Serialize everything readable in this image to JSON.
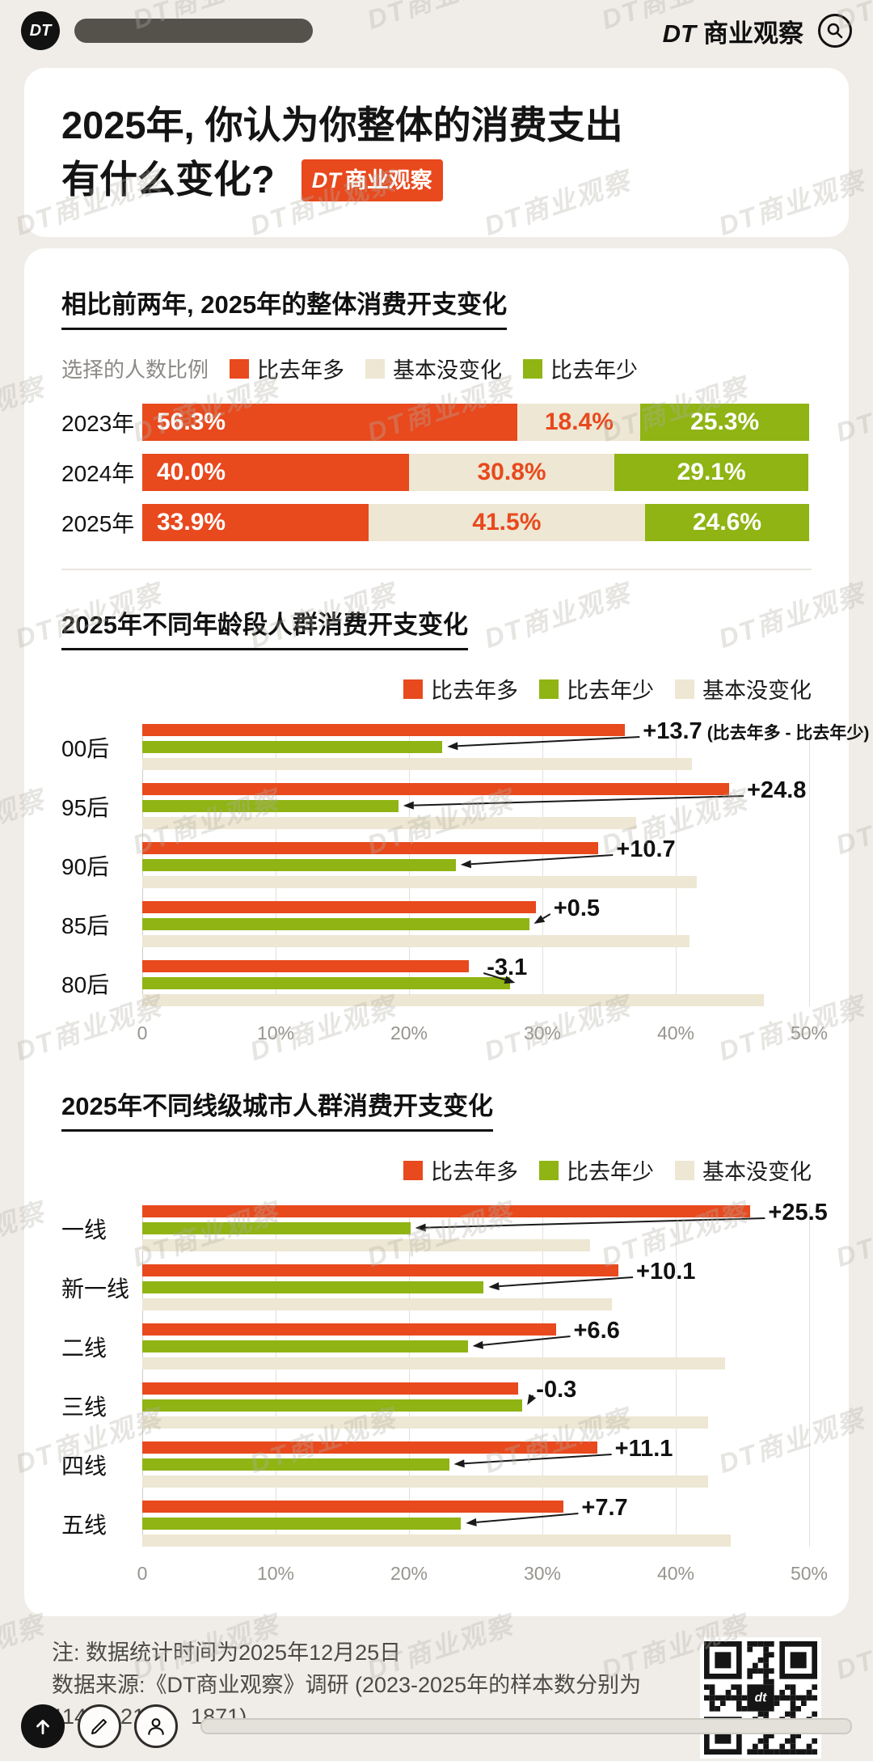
{
  "topbar": {
    "logo_text": "DT",
    "brand_dt": "DT",
    "brand_name": "商业观察"
  },
  "watermark": {
    "text": "DT商业观察"
  },
  "title": {
    "line1": "2025年, 你认为你整体的消费支出",
    "line2": "有什么变化?",
    "badge_dt": "DT",
    "badge_name": "商业观察"
  },
  "chart_data": [
    {
      "type": "bar",
      "variant": "stacked",
      "title": "相比前两年, 2025年的整体消费开支变化",
      "legend_note": "选择的人数比例",
      "categories": [
        "2023年",
        "2024年",
        "2025年"
      ],
      "series": [
        {
          "name": "比去年多",
          "color": "#E8491D",
          "text_color": "#FFFFFF",
          "values": [
            56.3,
            40.0,
            33.9
          ]
        },
        {
          "name": "基本没变化",
          "color": "#EDE7D3",
          "text_color": "#E8491D",
          "values": [
            18.4,
            30.8,
            41.5
          ]
        },
        {
          "name": "比去年少",
          "color": "#8FB414",
          "text_color": "#FFFFFF",
          "values": [
            25.3,
            29.1,
            24.6
          ]
        }
      ],
      "value_suffix": "%",
      "xlim": [
        0,
        100
      ]
    },
    {
      "type": "bar",
      "variant": "grouped",
      "title": "2025年不同年龄段人群消费开支变化",
      "categories": [
        "00后",
        "95后",
        "90后",
        "85后",
        "80后"
      ],
      "series": [
        {
          "name": "比去年多",
          "color": "#E8491D",
          "values": [
            36.2,
            44.0,
            34.2,
            29.5,
            24.5
          ]
        },
        {
          "name": "比去年少",
          "color": "#8FB414",
          "values": [
            22.5,
            19.2,
            23.5,
            29.0,
            27.6
          ]
        },
        {
          "name": "基本没变化",
          "color": "#EDE7D3",
          "values": [
            41.2,
            37.0,
            41.6,
            41.0,
            46.6
          ]
        }
      ],
      "annotations": [
        "+13.7",
        "+24.8",
        "+10.7",
        "+0.5",
        "-3.1"
      ],
      "annotation_note": "(比去年多 - 比去年少)",
      "xlim": [
        0,
        50
      ],
      "xticks": [
        "0",
        "10%",
        "20%",
        "30%",
        "40%",
        "50%"
      ]
    },
    {
      "type": "bar",
      "variant": "grouped",
      "title": "2025年不同线级城市人群消费开支变化",
      "categories": [
        "一线",
        "新一线",
        "二线",
        "三线",
        "四线",
        "五线"
      ],
      "series": [
        {
          "name": "比去年多",
          "color": "#E8491D",
          "values": [
            45.6,
            35.7,
            31.0,
            28.2,
            34.1,
            31.6
          ]
        },
        {
          "name": "比去年少",
          "color": "#8FB414",
          "values": [
            20.1,
            25.6,
            24.4,
            28.5,
            23.0,
            23.9
          ]
        },
        {
          "name": "基本没变化",
          "color": "#EDE7D3",
          "values": [
            33.6,
            35.2,
            43.7,
            42.4,
            42.4,
            44.1
          ]
        }
      ],
      "annotations": [
        "+25.5",
        "+10.1",
        "+6.6",
        "-0.3",
        "+11.1",
        "+7.7"
      ],
      "xlim": [
        0,
        50
      ],
      "xticks": [
        "0",
        "10%",
        "20%",
        "30%",
        "40%",
        "50%"
      ]
    }
  ],
  "notes": {
    "line1": "注: 数据统计时间为2025年12月25日",
    "line2": "数据来源:《DT商业观察》调研 (2023-2025年的样本数分别为1148、2172、1871)"
  },
  "qr": {
    "center_label": "dt"
  }
}
